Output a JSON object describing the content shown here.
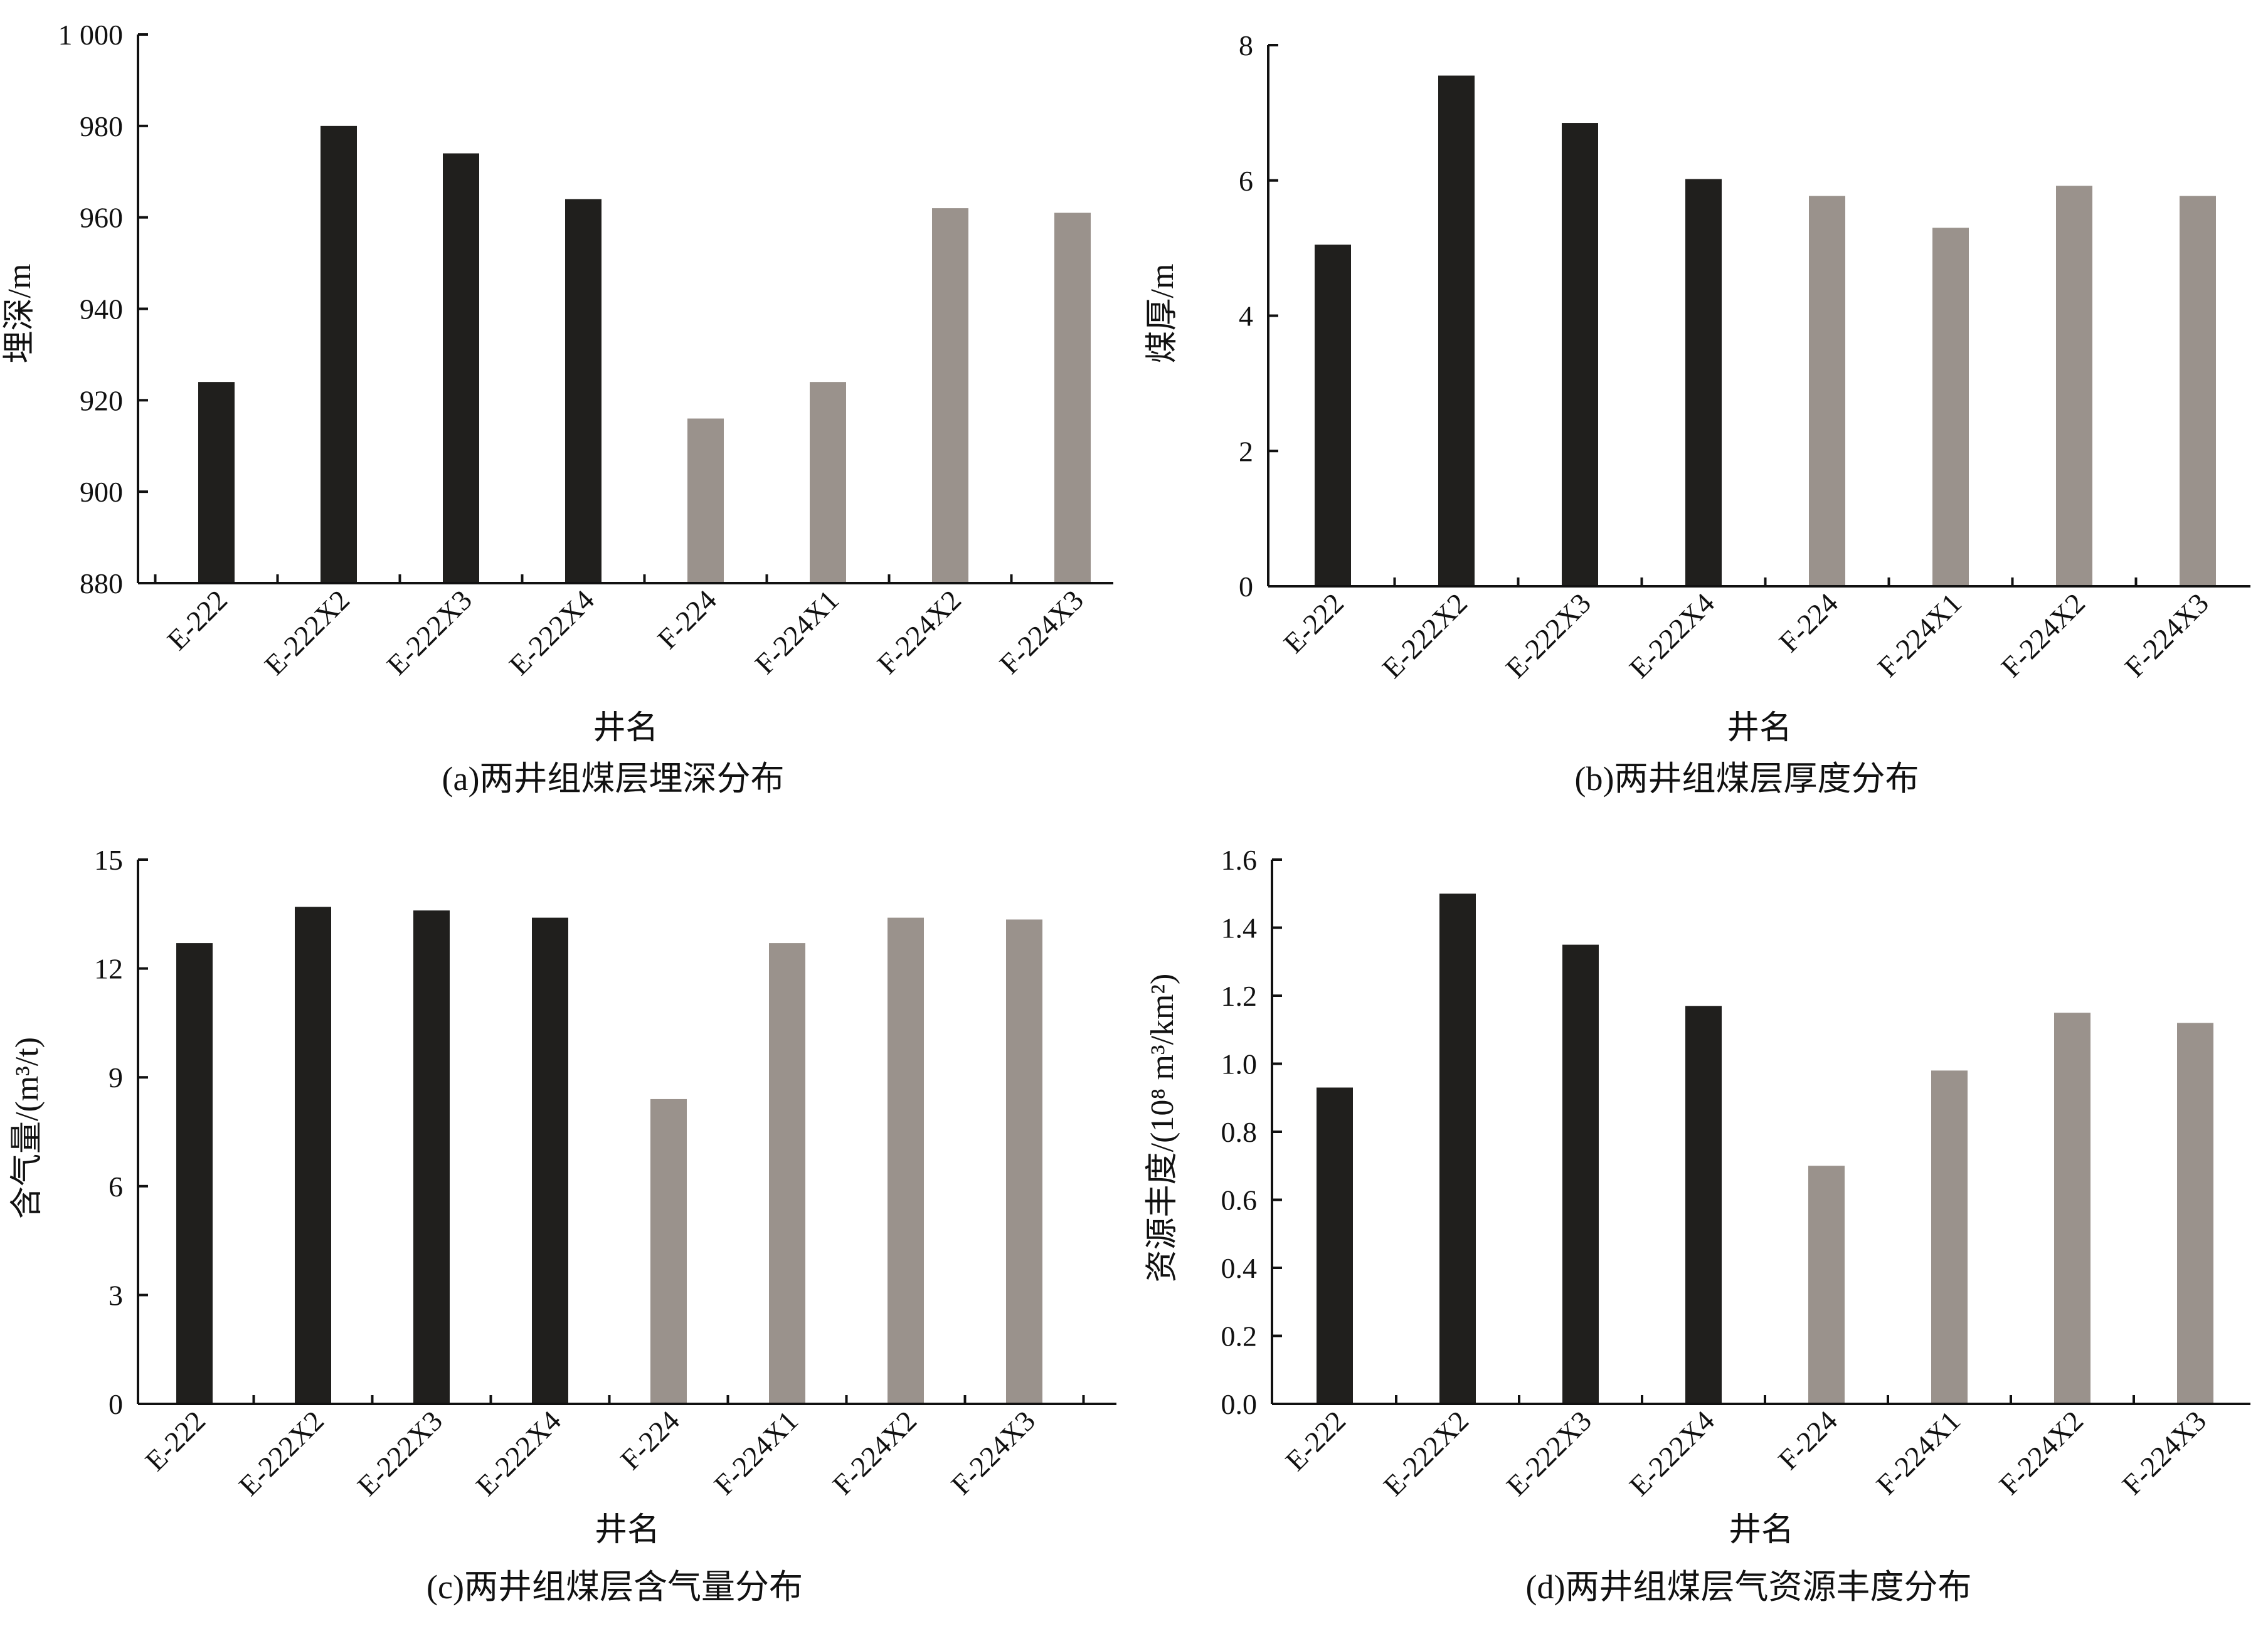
{
  "colors": {
    "group_e": "#201f1d",
    "group_f": "#9a928c",
    "axis": "#111111",
    "text": "#111111"
  },
  "chart_data": [
    {
      "type": "bar",
      "caption": "(a)两井组煤层埋深分布",
      "xlabel": "井名",
      "ylabel": "埋深/m",
      "ylim": [
        880,
        1000
      ],
      "yticks": [
        880,
        900,
        920,
        940,
        960,
        980,
        1000
      ],
      "ytick_labels": [
        "880",
        "900",
        "920",
        "940",
        "960",
        "980",
        "1 000"
      ],
      "categories": [
        "E-222",
        "E-222X2",
        "E-222X3",
        "E-222X4",
        "F-224",
        "F-224X1",
        "F-224X2",
        "F-224X3"
      ],
      "values": [
        924,
        980,
        974,
        964,
        916,
        924,
        962,
        961
      ],
      "groups": [
        "E",
        "E",
        "E",
        "E",
        "F",
        "F",
        "F",
        "F"
      ],
      "grid": false
    },
    {
      "type": "bar",
      "caption": "(b)两井组煤层厚度分布",
      "xlabel": "井名",
      "ylabel": "煤厚/m",
      "ylim": [
        0,
        8
      ],
      "yticks": [
        0,
        2,
        4,
        6,
        8
      ],
      "ytick_labels": [
        "0",
        "2",
        "4",
        "6",
        "8"
      ],
      "categories": [
        "E-222",
        "E-222X2",
        "E-222X3",
        "E-222X4",
        "F-224",
        "F-224X1",
        "F-224X2",
        "F-224X3"
      ],
      "values": [
        5.05,
        7.55,
        6.85,
        6.02,
        5.77,
        5.3,
        5.92,
        5.77
      ],
      "groups": [
        "E",
        "E",
        "E",
        "E",
        "F",
        "F",
        "F",
        "F"
      ],
      "grid": false
    },
    {
      "type": "bar",
      "caption": "(c)两井组煤层含气量分布",
      "xlabel": "井名",
      "ylabel": "含气量/(m³/t)",
      "ylim": [
        0,
        15
      ],
      "yticks": [
        0,
        3,
        6,
        9,
        12,
        15
      ],
      "ytick_labels": [
        "0",
        "3",
        "6",
        "9",
        "12",
        "15"
      ],
      "categories": [
        "E-222",
        "E-222X2",
        "E-222X3",
        "E-222X4",
        "F-224",
        "F-224X1",
        "F-224X2",
        "F-224X3"
      ],
      "values": [
        12.7,
        13.7,
        13.6,
        13.4,
        8.4,
        12.7,
        13.4,
        13.35
      ],
      "groups": [
        "E",
        "E",
        "E",
        "E",
        "F",
        "F",
        "F",
        "F"
      ],
      "grid": false
    },
    {
      "type": "bar",
      "caption": "(d)两井组煤层气资源丰度分布",
      "xlabel": "井名",
      "ylabel": "资源丰度/(10⁸ m³/km²)",
      "ylim": [
        0,
        1.6
      ],
      "yticks": [
        0,
        0.2,
        0.4,
        0.6,
        0.8,
        1.0,
        1.2,
        1.4,
        1.6
      ],
      "ytick_labels": [
        "0.0",
        "0.2",
        "0.4",
        "0.6",
        "0.8",
        "1.0",
        "1.2",
        "1.4",
        "1.6"
      ],
      "categories": [
        "E-222",
        "E-222X2",
        "E-222X3",
        "E-222X4",
        "F-224",
        "F-224X1",
        "F-224X2",
        "F-224X3"
      ],
      "values": [
        0.93,
        1.5,
        1.35,
        1.17,
        0.7,
        0.98,
        1.15,
        1.12
      ],
      "groups": [
        "E",
        "E",
        "E",
        "E",
        "F",
        "F",
        "F",
        "F"
      ],
      "grid": false
    }
  ]
}
